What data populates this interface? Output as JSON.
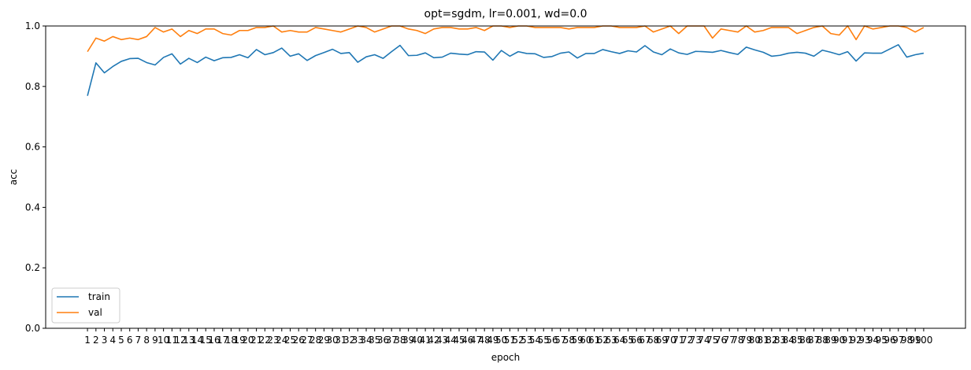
{
  "chart_data": {
    "type": "line",
    "title": "opt=sgdm, lr=0.001, wd=0.0",
    "xlabel": "epoch",
    "ylabel": "acc",
    "ylim": [
      0,
      1.0
    ],
    "yticks": [
      "0.0",
      "0.2",
      "0.4",
      "0.6",
      "0.8",
      "1.0"
    ],
    "grid": false,
    "legend_position": "lower-left",
    "x": [
      1,
      2,
      3,
      4,
      5,
      6,
      7,
      8,
      9,
      10,
      11,
      12,
      13,
      14,
      15,
      16,
      17,
      18,
      19,
      20,
      21,
      22,
      23,
      24,
      25,
      26,
      27,
      28,
      29,
      30,
      31,
      32,
      33,
      34,
      35,
      36,
      37,
      38,
      39,
      40,
      41,
      42,
      43,
      44,
      45,
      46,
      47,
      48,
      49,
      50,
      51,
      52,
      53,
      54,
      55,
      56,
      57,
      58,
      59,
      60,
      61,
      62,
      63,
      64,
      65,
      66,
      67,
      68,
      69,
      70,
      71,
      72,
      73,
      74,
      75,
      76,
      77,
      78,
      79,
      80,
      81,
      82,
      83,
      84,
      85,
      86,
      87,
      88,
      89,
      90,
      91,
      92,
      93,
      94,
      95,
      96,
      97,
      98,
      99,
      100
    ],
    "series": [
      {
        "name": "train",
        "color": "#1f77b4",
        "values": [
          0.769,
          0.878,
          0.845,
          0.866,
          0.883,
          0.892,
          0.893,
          0.879,
          0.871,
          0.896,
          0.908,
          0.874,
          0.893,
          0.879,
          0.897,
          0.885,
          0.895,
          0.896,
          0.905,
          0.895,
          0.922,
          0.905,
          0.912,
          0.927,
          0.9,
          0.908,
          0.886,
          0.902,
          0.912,
          0.923,
          0.909,
          0.912,
          0.88,
          0.898,
          0.905,
          0.893,
          0.915,
          0.936,
          0.902,
          0.903,
          0.911,
          0.895,
          0.897,
          0.91,
          0.907,
          0.905,
          0.915,
          0.914,
          0.887,
          0.919,
          0.9,
          0.915,
          0.909,
          0.908,
          0.896,
          0.899,
          0.91,
          0.914,
          0.894,
          0.909,
          0.909,
          0.922,
          0.915,
          0.909,
          0.918,
          0.914,
          0.935,
          0.914,
          0.905,
          0.924,
          0.911,
          0.906,
          0.916,
          0.915,
          0.913,
          0.919,
          0.912,
          0.906,
          0.93,
          0.921,
          0.913,
          0.9,
          0.903,
          0.91,
          0.913,
          0.91,
          0.9,
          0.92,
          0.913,
          0.905,
          0.915,
          0.884,
          0.911,
          0.91,
          0.91,
          0.924,
          0.938,
          0.897,
          0.905,
          0.91
        ]
      },
      {
        "name": "val",
        "color": "#ff7f0e",
        "values": [
          0.915,
          0.96,
          0.95,
          0.965,
          0.955,
          0.96,
          0.955,
          0.965,
          0.995,
          0.98,
          0.99,
          0.965,
          0.985,
          0.975,
          0.99,
          0.99,
          0.975,
          0.97,
          0.985,
          0.985,
          0.995,
          0.995,
          1.0,
          0.98,
          0.985,
          0.98,
          0.98,
          0.995,
          0.99,
          0.985,
          0.98,
          0.99,
          1.0,
          0.995,
          0.98,
          0.99,
          1.0,
          1.0,
          0.99,
          0.985,
          0.975,
          0.99,
          0.995,
          0.995,
          0.99,
          0.99,
          0.995,
          0.985,
          1.0,
          1.0,
          0.995,
          1.0,
          1.0,
          0.995,
          0.995,
          0.995,
          0.995,
          0.99,
          0.995,
          0.995,
          0.995,
          1.0,
          1.0,
          0.995,
          0.995,
          0.995,
          1.0,
          0.98,
          0.99,
          1.0,
          0.975,
          1.0,
          1.0,
          1.0,
          0.96,
          0.99,
          0.985,
          0.98,
          1.0,
          0.98,
          0.985,
          0.995,
          0.995,
          0.995,
          0.975,
          0.985,
          0.995,
          1.0,
          0.975,
          0.97,
          1.0,
          0.955,
          1.0,
          0.99,
          0.995,
          1.0,
          1.0,
          0.995,
          0.98,
          0.995
        ]
      }
    ]
  }
}
